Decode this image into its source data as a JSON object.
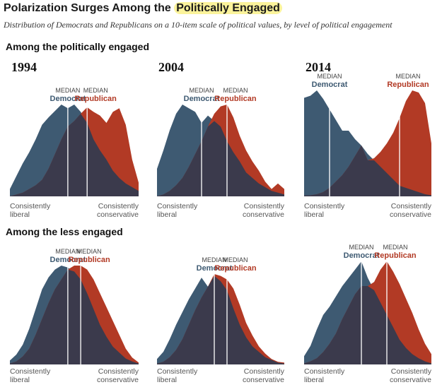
{
  "title_prefix": "Polarization Surges Among the",
  "title_highlight": "Politically Engaged",
  "subtitle": "Distribution of Democrats and Republicans on a 10-item scale of political values, by level of political engagement",
  "sections": [
    "Among the politically engaged",
    "Among the less engaged"
  ],
  "median_word": "MEDIAN",
  "dem_label": "Democrat",
  "rep_label": "Republican",
  "liberal_label": [
    "Consistently",
    "liberal"
  ],
  "conservative_label": [
    "Consistently",
    "conservative"
  ],
  "colors": {
    "democrat": "#3e5a72",
    "republican": "#b23a25",
    "overlap": "#3b3a4c",
    "median_line": "#ffffff"
  },
  "chart_data": [
    {
      "type": "area",
      "group": "Among the politically engaged",
      "year": "1994",
      "x": [
        -10,
        -9,
        -8,
        -7,
        -6,
        -5,
        -4,
        -3,
        -2,
        -1,
        0,
        1,
        2,
        3,
        4,
        5,
        6,
        7,
        8,
        9,
        10
      ],
      "series": [
        {
          "name": "Democrat",
          "values": [
            0.08,
            0.22,
            0.36,
            0.48,
            0.62,
            0.78,
            0.86,
            0.93,
            1.0,
            0.96,
            1.0,
            0.92,
            0.8,
            0.62,
            0.5,
            0.4,
            0.28,
            0.2,
            0.14,
            0.1,
            0.06
          ]
        },
        {
          "name": "Republican",
          "values": [
            0.0,
            0.02,
            0.04,
            0.08,
            0.12,
            0.18,
            0.3,
            0.46,
            0.62,
            0.76,
            0.82,
            0.9,
            0.97,
            0.92,
            0.88,
            0.8,
            0.92,
            0.96,
            0.78,
            0.4,
            0.15
          ]
        }
      ],
      "median_x": {
        "Democrat": -1.0,
        "Republican": 2.0
      },
      "ylim": [
        0,
        1
      ]
    },
    {
      "type": "area",
      "group": "Among the politically engaged",
      "year": "2004",
      "x": [
        -10,
        -9,
        -8,
        -7,
        -6,
        -5,
        -4,
        -3,
        -2,
        -1,
        0,
        1,
        2,
        3,
        4,
        5,
        6,
        7,
        8,
        9,
        10
      ],
      "series": [
        {
          "name": "Democrat",
          "values": [
            0.3,
            0.5,
            0.72,
            0.9,
            1.0,
            0.96,
            0.92,
            0.8,
            0.88,
            0.82,
            0.76,
            0.6,
            0.48,
            0.38,
            0.26,
            0.2,
            0.14,
            0.1,
            0.06,
            0.04,
            0.02
          ]
        },
        {
          "name": "Republican",
          "values": [
            0.0,
            0.02,
            0.06,
            0.12,
            0.2,
            0.32,
            0.46,
            0.6,
            0.76,
            0.9,
            0.98,
            1.0,
            0.86,
            0.66,
            0.5,
            0.38,
            0.28,
            0.16,
            0.08,
            0.14,
            0.08
          ]
        }
      ],
      "median_x": {
        "Democrat": -3.0,
        "Republican": 1.0
      },
      "ylim": [
        0,
        1
      ]
    },
    {
      "type": "area",
      "group": "Among the politically engaged",
      "year": "2014",
      "x": [
        -10,
        -9,
        -8,
        -7,
        -6,
        -5,
        -4,
        -3,
        -2,
        -1,
        0,
        1,
        2,
        3,
        4,
        5,
        6,
        7,
        8,
        9,
        10
      ],
      "series": [
        {
          "name": "Democrat",
          "values": [
            0.93,
            0.95,
            1.0,
            0.92,
            0.82,
            0.72,
            0.62,
            0.62,
            0.54,
            0.48,
            0.4,
            0.34,
            0.28,
            0.22,
            0.16,
            0.1,
            0.08,
            0.06,
            0.04,
            0.02,
            0.01
          ]
        },
        {
          "name": "Republican",
          "values": [
            0.01,
            0.01,
            0.02,
            0.04,
            0.08,
            0.14,
            0.2,
            0.28,
            0.38,
            0.48,
            0.34,
            0.36,
            0.42,
            0.5,
            0.6,
            0.74,
            0.9,
            1.0,
            0.98,
            0.88,
            0.5
          ]
        }
      ],
      "median_x": {
        "Democrat": -6.0,
        "Republican": 5.0
      },
      "ylim": [
        0,
        1
      ]
    },
    {
      "type": "area",
      "group": "Among the less engaged",
      "year": "1994",
      "x": [
        -10,
        -9,
        -8,
        -7,
        -6,
        -5,
        -4,
        -3,
        -2,
        -1,
        0,
        1,
        2,
        3,
        4,
        5,
        6,
        7,
        8,
        9,
        10
      ],
      "series": [
        {
          "name": "Democrat",
          "values": [
            0.04,
            0.1,
            0.2,
            0.36,
            0.56,
            0.76,
            0.88,
            0.96,
            1.0,
            0.98,
            0.94,
            0.86,
            0.72,
            0.56,
            0.4,
            0.28,
            0.18,
            0.12,
            0.06,
            0.03,
            0.01
          ]
        },
        {
          "name": "Republican",
          "values": [
            0.01,
            0.03,
            0.08,
            0.16,
            0.3,
            0.46,
            0.62,
            0.76,
            0.86,
            0.96,
            1.0,
            1.0,
            0.96,
            0.86,
            0.72,
            0.58,
            0.44,
            0.3,
            0.16,
            0.07,
            0.02
          ]
        }
      ],
      "median_x": {
        "Democrat": -1.0,
        "Republican": 1.0
      },
      "ylim": [
        0,
        1
      ]
    },
    {
      "type": "area",
      "group": "Among the less engaged",
      "year": "2004",
      "x": [
        -10,
        -9,
        -8,
        -7,
        -6,
        -5,
        -4,
        -3,
        -2,
        -1,
        0,
        1,
        2,
        3,
        4,
        5,
        6,
        7,
        8,
        9,
        10
      ],
      "series": [
        {
          "name": "Democrat",
          "values": [
            0.06,
            0.14,
            0.28,
            0.44,
            0.58,
            0.72,
            0.84,
            0.96,
            0.86,
            0.98,
            0.92,
            0.82,
            0.62,
            0.44,
            0.3,
            0.2,
            0.14,
            0.08,
            0.05,
            0.02,
            0.01
          ]
        },
        {
          "name": "Republican",
          "values": [
            0.01,
            0.03,
            0.08,
            0.16,
            0.28,
            0.44,
            0.6,
            0.74,
            0.86,
            1.0,
            0.98,
            0.94,
            0.84,
            0.66,
            0.46,
            0.32,
            0.2,
            0.12,
            0.06,
            0.03,
            0.02
          ]
        }
      ],
      "median_x": {
        "Democrat": -1.0,
        "Republican": 1.0
      },
      "ylim": [
        0,
        1
      ]
    },
    {
      "type": "area",
      "group": "Among the less engaged",
      "year": "2014",
      "x": [
        -10,
        -9,
        -8,
        -7,
        -6,
        -5,
        -4,
        -3,
        -2,
        -1,
        0,
        1,
        2,
        3,
        4,
        5,
        6,
        7,
        8,
        9,
        10
      ],
      "series": [
        {
          "name": "Democrat",
          "values": [
            0.08,
            0.18,
            0.34,
            0.48,
            0.56,
            0.66,
            0.76,
            0.84,
            0.92,
            1.0,
            0.84,
            0.72,
            0.6,
            0.48,
            0.36,
            0.24,
            0.16,
            0.1,
            0.06,
            0.03,
            0.01
          ]
        },
        {
          "name": "Republican",
          "values": [
            0.01,
            0.03,
            0.06,
            0.12,
            0.2,
            0.3,
            0.44,
            0.56,
            0.68,
            0.76,
            0.76,
            0.8,
            0.92,
            1.0,
            0.9,
            0.78,
            0.64,
            0.5,
            0.34,
            0.2,
            0.1
          ]
        }
      ],
      "median_x": {
        "Democrat": -1.0,
        "Republican": 3.0
      },
      "ylim": [
        0,
        1
      ]
    }
  ]
}
